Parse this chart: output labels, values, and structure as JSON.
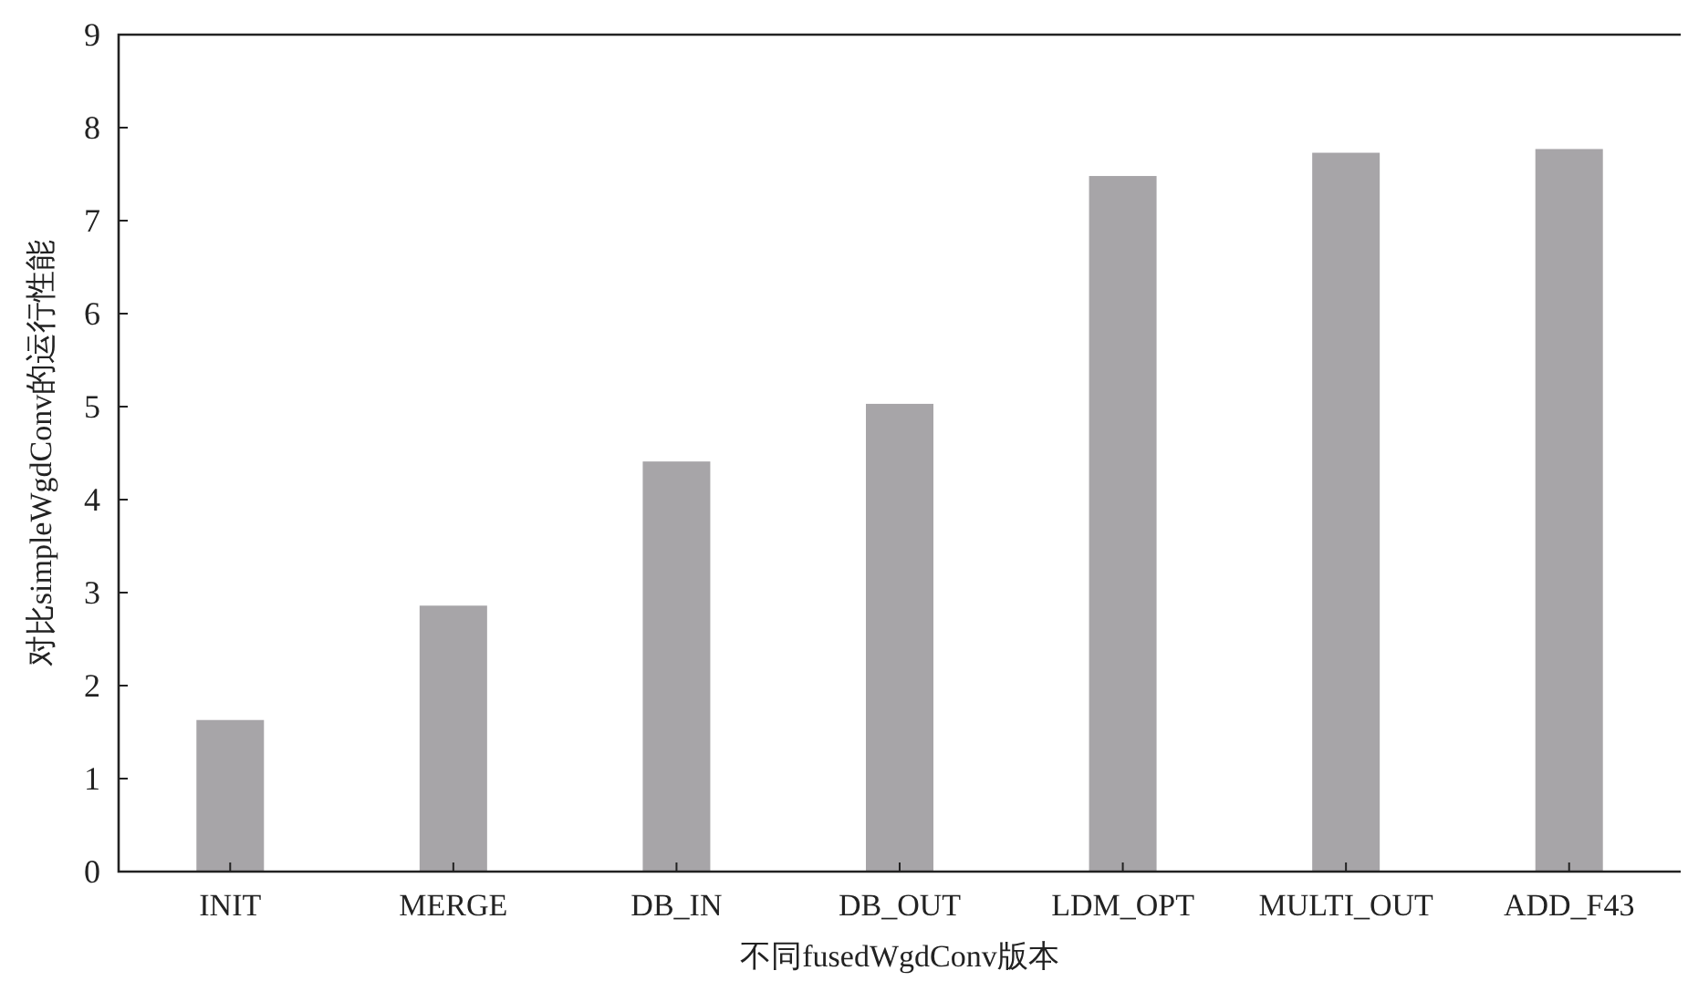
{
  "chart_data": {
    "type": "bar",
    "xlabel": "不同fusedWgdConv版本",
    "ylabel": "对比simpleWgdConv的运行性能",
    "categories": [
      "INIT",
      "MERGE",
      "DB_IN",
      "DB_OUT",
      "LDM_OPT",
      "MULTI_OUT",
      "ADD_F43"
    ],
    "values": [
      1.63,
      2.86,
      4.41,
      5.03,
      7.48,
      7.73,
      7.77
    ],
    "color": "#a7a5a8",
    "ylim": [
      0,
      9
    ],
    "yticks": [
      0,
      1,
      2,
      3,
      4,
      5,
      6,
      7,
      8,
      9
    ],
    "grid": false
  }
}
